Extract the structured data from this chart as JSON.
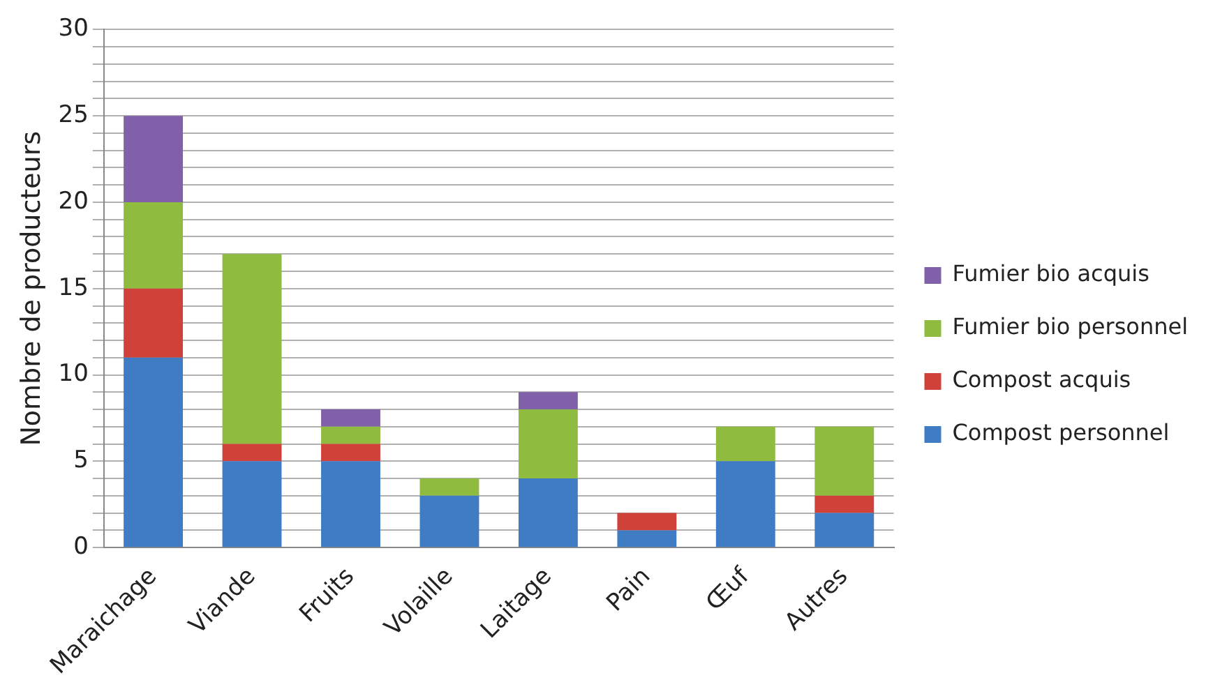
{
  "chart_data": {
    "type": "bar",
    "stacked": true,
    "ylabel": "Nombre de producteurs",
    "categories": [
      "Maraichage",
      "Viande",
      "Fruits",
      "Volaille",
      "Laitage",
      "Pain",
      "Œuf",
      "Autres"
    ],
    "series": [
      {
        "name": "Compost personnel",
        "color": "#3f7cc4",
        "values": [
          11,
          5,
          5,
          3,
          4,
          1,
          5,
          2
        ]
      },
      {
        "name": "Compost acquis",
        "color": "#d0413a",
        "values": [
          4,
          1,
          1,
          0,
          0,
          1,
          0,
          1
        ]
      },
      {
        "name": "Fumier bio personnel",
        "color": "#8fbc3f",
        "values": [
          5,
          11,
          1,
          1,
          4,
          0,
          2,
          4
        ]
      },
      {
        "name": "Fumier bio acquis",
        "color": "#8060a8",
        "values": [
          5,
          0,
          1,
          0,
          1,
          0,
          0,
          0
        ]
      }
    ],
    "ylim": [
      0,
      30
    ],
    "yticks": [
      0,
      {
        "value": 1,
        "label": null
      },
      {
        "value": 2,
        "label": null
      },
      {
        "value": 3,
        "label": null
      },
      {
        "value": 4,
        "label": null
      },
      5,
      {
        "value": 6,
        "label": null
      },
      {
        "value": 7,
        "label": null
      },
      {
        "value": 8,
        "label": null
      },
      {
        "value": 9,
        "label": null
      },
      10,
      {
        "value": 11,
        "label": null
      },
      {
        "value": 12,
        "label": null
      },
      {
        "value": 13,
        "label": null
      },
      {
        "value": 14,
        "label": null
      },
      15,
      {
        "value": 16,
        "label": null
      },
      {
        "value": 17,
        "label": null
      },
      {
        "value": 18,
        "label": null
      },
      {
        "value": 19,
        "label": null
      },
      20,
      {
        "value": 21,
        "label": null
      },
      {
        "value": 22,
        "label": null
      },
      {
        "value": 23,
        "label": null
      },
      {
        "value": 24,
        "label": null
      },
      25,
      {
        "value": 26,
        "label": null
      },
      {
        "value": 27,
        "label": null
      },
      {
        "value": 28,
        "label": null
      },
      {
        "value": 29,
        "label": null
      },
      30
    ],
    "grid": "y",
    "legend": "right"
  }
}
